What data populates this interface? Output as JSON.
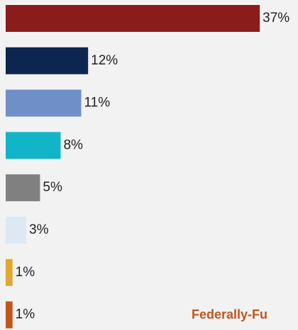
{
  "chart_data": {
    "type": "hbar",
    "values": [
      37,
      12,
      11,
      8,
      5,
      3,
      1,
      1
    ],
    "value_labels": [
      "37%",
      "12%",
      "11%",
      "8%",
      "5%",
      "3%",
      "1%",
      "1%"
    ],
    "colors": [
      "#8b1c1c",
      "#0d2650",
      "#6f8fc8",
      "#12b5c8",
      "#808080",
      "#dde8f3",
      "#e0a830",
      "#c0561a"
    ],
    "annotation": "Federally-Fu"
  }
}
